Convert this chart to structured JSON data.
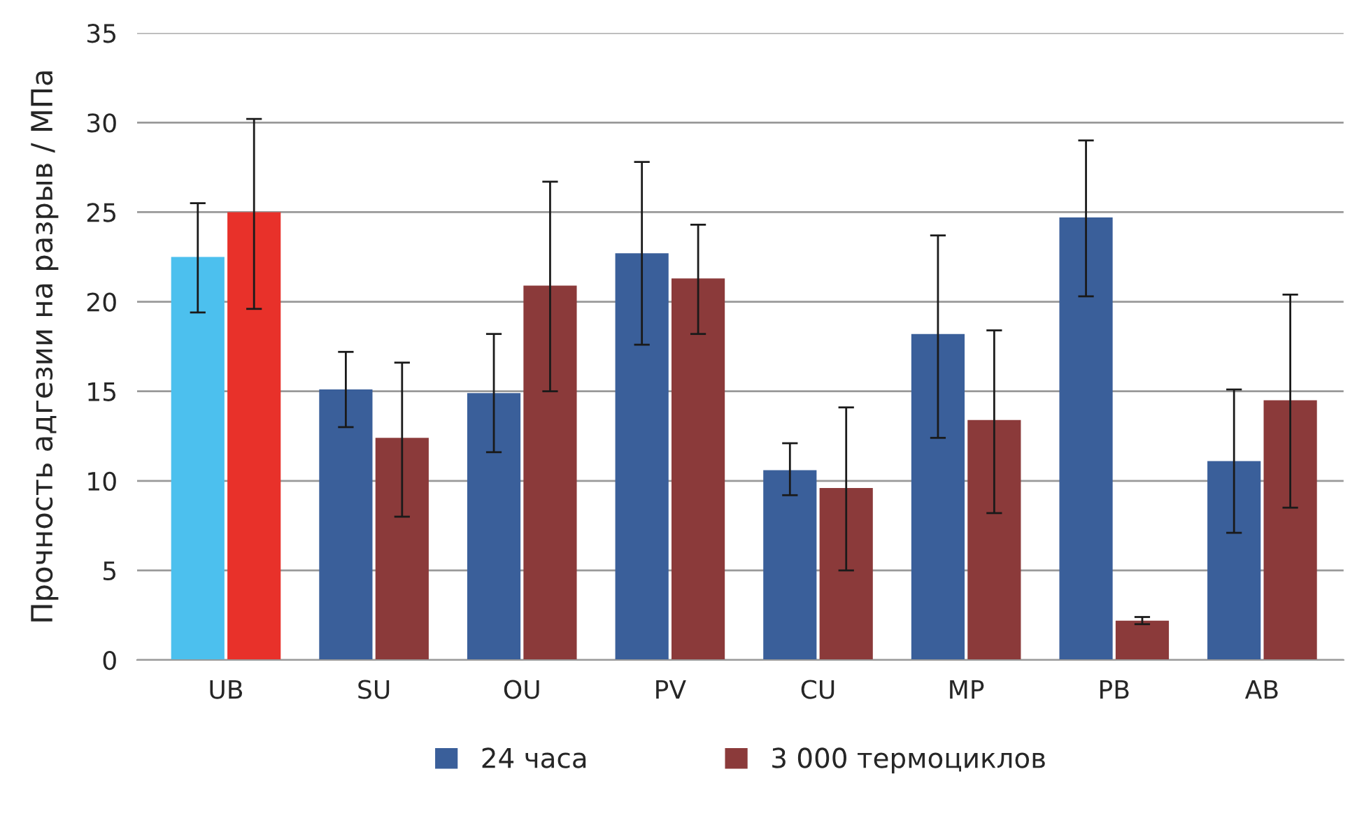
{
  "chart_data": {
    "type": "bar",
    "ylabel": "Прочность адгезии на разрыв / МПа",
    "categories": [
      "UB",
      "SU",
      "OU",
      "PV",
      "CU",
      "MP",
      "PB",
      "AB"
    ],
    "series": [
      {
        "name": "24 часа",
        "color": "#3a5f9a",
        "colors": [
          "#4cc0ee",
          "#3a5f9a",
          "#3a5f9a",
          "#3a5f9a",
          "#3a5f9a",
          "#3a5f9a",
          "#3a5f9a",
          "#3a5f9a"
        ],
        "values": [
          22.5,
          15.1,
          14.9,
          22.7,
          10.6,
          18.2,
          24.7,
          11.1
        ],
        "errors": [
          [
            19.4,
            25.5
          ],
          [
            13.0,
            17.2
          ],
          [
            11.6,
            18.2
          ],
          [
            17.6,
            27.8
          ],
          [
            9.2,
            12.1
          ],
          [
            12.4,
            23.7
          ],
          [
            20.3,
            29.0
          ],
          [
            7.1,
            15.1
          ]
        ]
      },
      {
        "name": "3 000 термоциклов",
        "color": "#8b3a3a",
        "colors": [
          "#e8312a",
          "#8b3a3a",
          "#8b3a3a",
          "#8b3a3a",
          "#8b3a3a",
          "#8b3a3a",
          "#8b3a3a",
          "#8b3a3a"
        ],
        "values": [
          25.0,
          12.4,
          20.9,
          21.3,
          9.6,
          13.4,
          2.2,
          14.5
        ],
        "errors": [
          [
            19.6,
            30.2
          ],
          [
            8.0,
            16.6
          ],
          [
            15.0,
            26.7
          ],
          [
            18.2,
            24.3
          ],
          [
            5.0,
            14.1
          ],
          [
            8.2,
            18.4
          ],
          [
            2.0,
            2.4
          ],
          [
            8.5,
            20.4
          ]
        ]
      }
    ],
    "ylim": [
      0,
      35
    ],
    "yticks": [
      0,
      5,
      10,
      15,
      20,
      25,
      30,
      35
    ],
    "grid": "y",
    "legend": "bottom"
  }
}
